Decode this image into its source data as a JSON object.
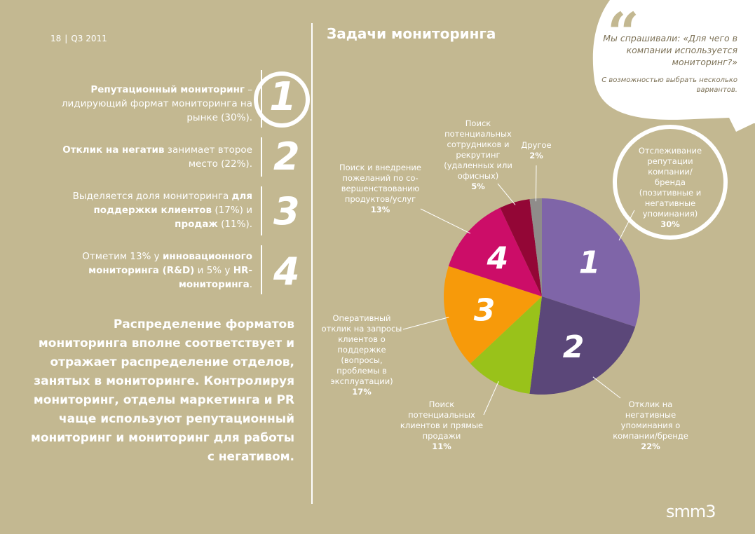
{
  "header": {
    "page": "18",
    "period": "Q3 2011",
    "title": "Задачи мониторинга"
  },
  "findings": [
    {
      "number": "1",
      "bold": "Репутационный мониторинг",
      "text": " – лидирующий формат мониторинга на рынке (30%)."
    },
    {
      "number": "2",
      "bold": "Отклик на негатив",
      "text": " занимает второе место (22%)."
    },
    {
      "number": "3",
      "pre": "Выделяется доля мониторинга ",
      "bold": "для поддержки клиентов",
      "mid": " (17%) и ",
      "bold2": "продаж",
      "text": " (11%)."
    },
    {
      "number": "4",
      "pre": "Отметим 13% у ",
      "bold": "инновационного мониторинга (R&D)",
      "mid": " и 5% у ",
      "bold2": "HR-мониторинга",
      "text": "."
    }
  ],
  "summary": "Распределение форматов мониторинга вполне соответствует и отражает распределение отделов, занятых в мониторинге. Контролируя мониторинг, отделы маркетинга и PR чаще используют репутационный мониторинг и мониторинг для работы с негативом.",
  "quote": {
    "question": "Мы спрашивали: «Для чего в компании используется мониторинг?»",
    "note": "С возможностью выбрать несколько вариантов.",
    "mark_icon": "quote-mark-icon"
  },
  "chart_data": {
    "type": "pie",
    "title": "",
    "unit": "%",
    "slices": [
      {
        "label": "Отслеживание репутации компании/бренда (позитивные и негативные упоминания)",
        "value": 30,
        "display": "30%",
        "color": "#7f65a8",
        "marker": "1"
      },
      {
        "label": "Отклик на негативные упоминания о компании/бренде",
        "value": 22,
        "display": "22%",
        "color": "#5b4779",
        "marker": "2"
      },
      {
        "label": "Поиск потенциальных клиентов и прямые продажи",
        "value": 11,
        "display": "11%",
        "color": "#99c21a",
        "marker": ""
      },
      {
        "label": "Оперативный отклик на запросы клиентов о поддержке (вопросы, проблемы в эксплуатации)",
        "value": 17,
        "display": "17%",
        "color": "#f79a0a",
        "marker": "3"
      },
      {
        "label": "Поиск и внедрение пожеланий по совершенствованию продуктов/услуг",
        "value": 13,
        "display": "13%",
        "color": "#cc0d68",
        "marker": "4"
      },
      {
        "label": "Поиск потенциальных сотрудников и рекрутинг (удаленных или офисных)",
        "value": 5,
        "display": "5%",
        "color": "#930636",
        "marker": ""
      },
      {
        "label": "Другое",
        "value": 2,
        "display": "2%",
        "color": "#8f8c8a",
        "marker": ""
      }
    ]
  },
  "slice_labels": [
    {
      "text": "Отслеживание репутации компании/бренда (позитивные и негативные упоминания)"
    },
    {
      "text": "Отклик на негативные упоминания о компании/бренде"
    },
    {
      "text": "Поиск потенциальных клиентов и прямые продажи"
    },
    {
      "text": "Оперативный отклик на запросы клиентов о поддержке (вопросы, проблемы в эксплуатации)"
    },
    {
      "text": "Поиск и внедрение пожеланий по со-вершенствованию продуктов/услуг"
    },
    {
      "text": "Поиск потенциальных сотрудников и рекрутинг (удаленных или офисных)"
    },
    {
      "text": "Другое"
    }
  ],
  "logo": {
    "text": "smm3"
  }
}
